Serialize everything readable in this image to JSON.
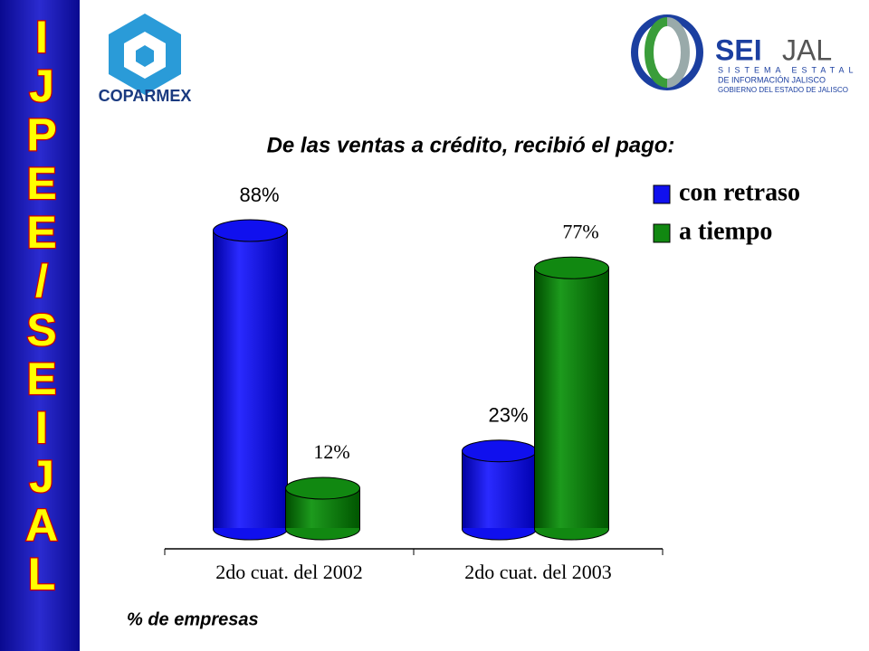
{
  "sidebar": {
    "letters": [
      "I",
      "J",
      "P",
      "E",
      "E",
      "/",
      "S",
      "E",
      "I",
      "J",
      "A",
      "L"
    ]
  },
  "logos": {
    "coparmex": "COPARMEX",
    "seijal_a": "SEI",
    "seijal_b": "JAL",
    "line1": "SISTEMA ESTATAL",
    "line2": "DE INFORMACIÓN JALISCO",
    "line3": "GOBIERNO DEL ESTADO DE JALISCO"
  },
  "chart_data": {
    "type": "bar",
    "title": "De las ventas a crédito, recibió el pago:",
    "categories": [
      "2do cuat. del 2002",
      "2do cuat. del 2003"
    ],
    "series": [
      {
        "name": "con retraso",
        "color": "#1010ee",
        "values": [
          88,
          23
        ],
        "value_labels": [
          "88%",
          "23%"
        ]
      },
      {
        "name": "a tiempo",
        "color": "#118811",
        "values": [
          12,
          77
        ],
        "value_labels": [
          "12%",
          "77%"
        ]
      }
    ],
    "ylim": [
      0,
      100
    ],
    "legend": "top-right",
    "note": "% de empresas"
  }
}
